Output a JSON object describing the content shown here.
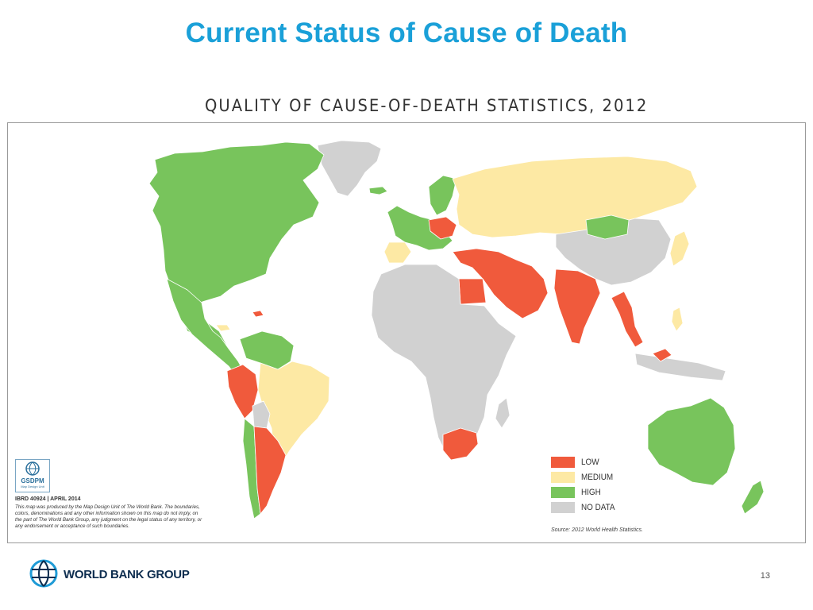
{
  "slide": {
    "title": "Current Status of Cause of Death",
    "page_number": "13"
  },
  "map": {
    "heading": "QUALITY OF CAUSE-OF-DEATH STATISTICS, 2012",
    "legend": [
      {
        "label": "LOW",
        "color": "#f05a3c"
      },
      {
        "label": "MEDIUM",
        "color": "#fde9a4"
      },
      {
        "label": "HIGH",
        "color": "#78c45c"
      },
      {
        "label": "NO DATA",
        "color": "#d1d1d1"
      }
    ],
    "source": "Source: 2012 World Health Statistics.",
    "badge": {
      "name": "GSDPM",
      "subtitle": "Map Design Unit"
    },
    "map_id": "IBRD 40924 | APRIL 2014",
    "disclaimer": "This map was produced by the Map Design Unit of The World Bank. The boundaries, colors, denominations and any other information shown on this map do not imply, on the part of The World Bank Group, any judgment on the legal status of any territory, or any endorsement or acceptance of such boundaries.",
    "colors": {
      "border": "#ffffff",
      "frame": "#9a9a9a"
    }
  },
  "footer": {
    "logo_text": "WORLD BANK GROUP",
    "logo_icon": "globe-icon"
  }
}
